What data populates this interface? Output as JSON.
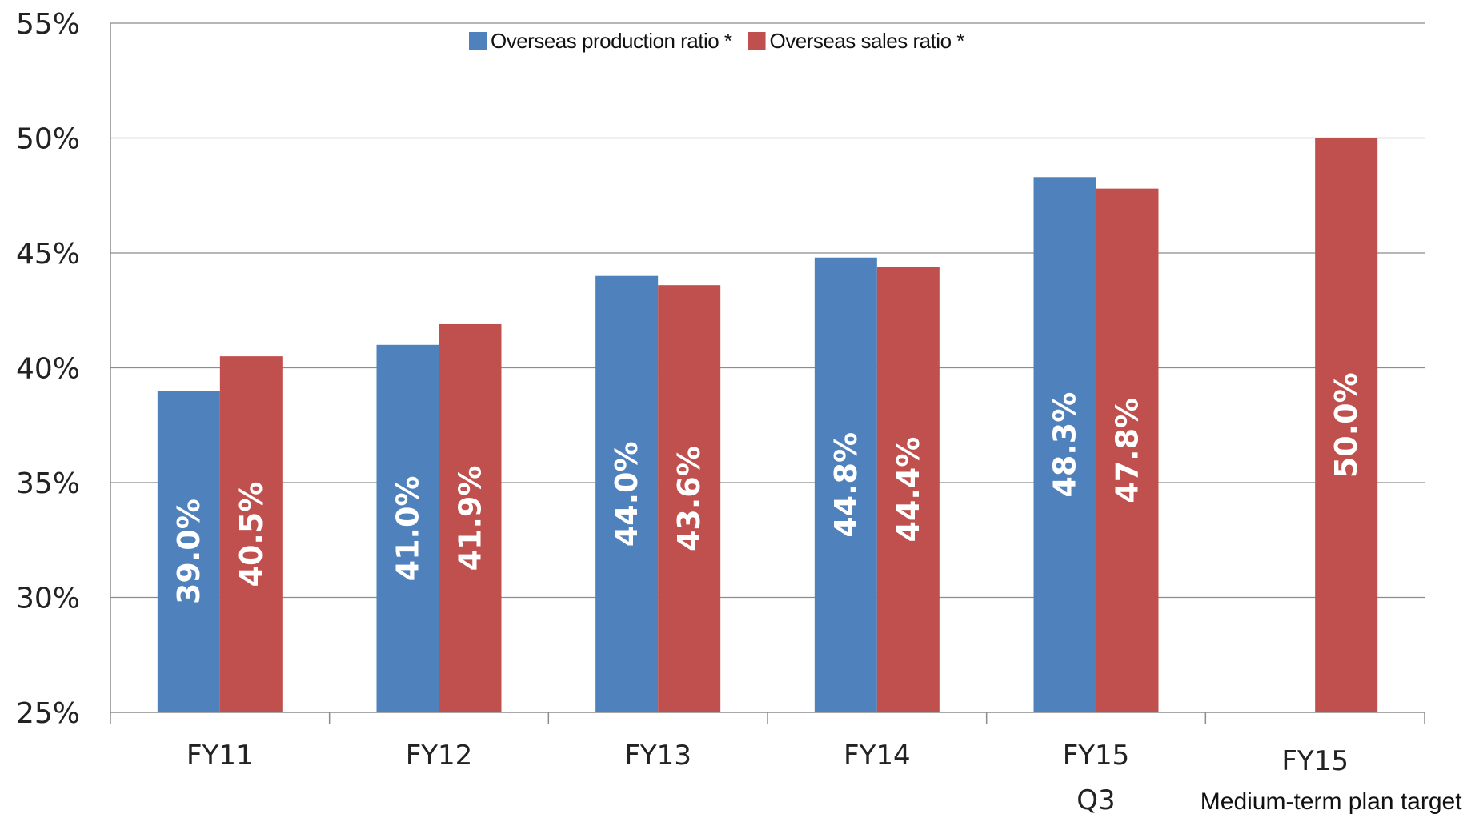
{
  "chart_data": {
    "type": "bar",
    "categories": [
      "FY11",
      "FY12",
      "FY13",
      "FY14",
      "FY15",
      "FY15"
    ],
    "category_sublabels": [
      "",
      "",
      "",
      "",
      "Q3",
      "Medium-term plan target"
    ],
    "series": [
      {
        "name": "Overseas production ratio",
        "legend_label": "Overseas production ratio *",
        "color": "#4F81BD",
        "values": [
          39.0,
          41.0,
          44.0,
          44.8,
          48.3,
          null
        ],
        "labels": [
          "39.0%",
          "41.0%",
          "44.0%",
          "44.8%",
          "48.3%",
          ""
        ]
      },
      {
        "name": "Overseas sales ratio",
        "legend_label": "Overseas sales ratio *",
        "color": "#C0504D",
        "values": [
          40.5,
          41.9,
          43.6,
          44.4,
          47.8,
          50.0
        ],
        "labels": [
          "40.5%",
          "41.9%",
          "43.6%",
          "44.4%",
          "47.8%",
          "50.0%"
        ]
      }
    ],
    "ylim": [
      25,
      55
    ],
    "yticks": [
      25,
      30,
      35,
      40,
      45,
      50,
      55
    ],
    "ytick_labels": [
      "25%",
      "30%",
      "35%",
      "40%",
      "45%",
      "50%",
      "55%"
    ],
    "title": "",
    "xlabel": "",
    "ylabel": "",
    "grid": true,
    "legend_position": "top-center"
  }
}
